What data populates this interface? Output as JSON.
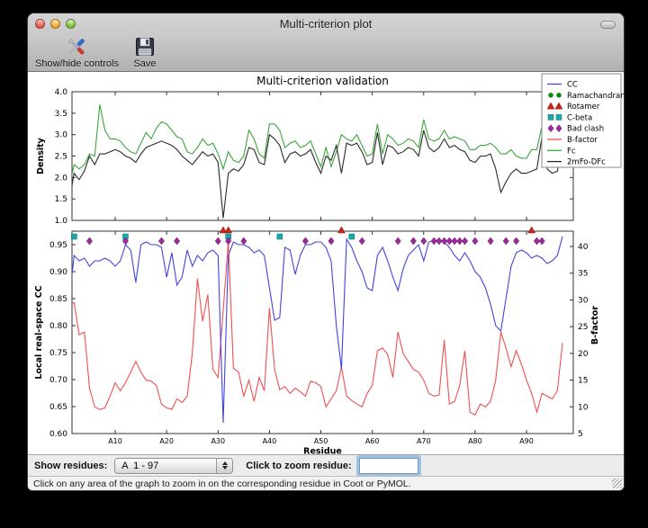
{
  "window": {
    "title": "Multi-criterion plot"
  },
  "toolbar": {
    "show_hide_label": "Show/hide controls",
    "save_label": "Save"
  },
  "controls": {
    "show_residues_label": "Show residues:",
    "residue_range_value": "A  1 - 97",
    "zoom_residue_label": "Click to zoom residue:",
    "zoom_input_value": ""
  },
  "statusbar": {
    "message": "Click on any area of the graph to zoom in on the corresponding residue in Coot or PyMOL."
  },
  "chart_data": [
    {
      "type": "line",
      "title": "Multi-criterion validation",
      "ylabel": "Density",
      "ylim": [
        1.0,
        4.0
      ],
      "yticks": [
        1.0,
        1.5,
        2.0,
        2.5,
        3.0,
        3.5,
        4.0
      ],
      "ytick_labels": [
        "1.0",
        "1.5",
        "2.0",
        "2.5",
        "3.0",
        "3.5",
        "4.0"
      ],
      "x": "residues 1-97",
      "series": [
        {
          "name": "Fc",
          "color": "#3aa63a",
          "values": [
            1.75,
            2.3,
            2.2,
            2.3,
            2.55,
            2.5,
            3.7,
            3.1,
            2.9,
            2.9,
            2.85,
            2.7,
            2.6,
            2.55,
            2.8,
            3.05,
            2.9,
            3.15,
            3.3,
            3.25,
            3.1,
            2.95,
            2.9,
            2.6,
            2.55,
            2.7,
            2.9,
            2.75,
            2.8,
            2.55,
            2.2,
            2.6,
            2.4,
            2.35,
            2.5,
            3.1,
            2.9,
            2.55,
            2.45,
            3.25,
            3.25,
            3.1,
            2.7,
            2.8,
            2.85,
            2.7,
            2.75,
            2.85,
            2.55,
            2.25,
            2.7,
            2.25,
            2.6,
            3.0,
            2.9,
            2.85,
            3.0,
            2.75,
            2.5,
            2.55,
            3.25,
            2.55,
            3.0,
            2.9,
            2.75,
            2.8,
            2.9,
            2.85,
            2.7,
            3.35,
            2.9,
            2.85,
            2.9,
            3.1,
            2.9,
            2.95,
            2.9,
            2.85,
            2.65,
            2.65,
            2.75,
            2.75,
            2.8,
            2.7,
            2.55,
            2.55,
            2.65,
            2.5,
            2.45,
            2.45,
            2.65,
            2.65,
            3.2,
            2.5,
            2.45,
            2.45,
            3.5
          ]
        },
        {
          "name": "2mFo-DFc",
          "color": "#2a2a2a",
          "values": [
            1.4,
            2.1,
            1.95,
            2.15,
            2.5,
            2.3,
            2.55,
            2.55,
            2.6,
            2.65,
            2.6,
            2.5,
            2.45,
            2.35,
            2.55,
            2.7,
            2.75,
            2.8,
            2.85,
            2.8,
            2.75,
            2.65,
            2.5,
            2.4,
            2.3,
            2.45,
            2.6,
            2.5,
            2.55,
            2.35,
            1.05,
            2.1,
            2.2,
            2.15,
            2.3,
            2.7,
            2.65,
            2.35,
            2.3,
            3.0,
            2.9,
            2.75,
            2.35,
            2.55,
            2.6,
            2.5,
            2.55,
            2.65,
            2.35,
            2.1,
            2.5,
            2.4,
            2.75,
            2.1,
            2.8,
            2.75,
            2.8,
            2.6,
            2.3,
            2.35,
            3.05,
            2.3,
            2.75,
            2.7,
            2.55,
            2.6,
            2.7,
            2.65,
            2.5,
            3.1,
            2.7,
            2.6,
            2.7,
            2.9,
            2.7,
            2.75,
            2.65,
            2.6,
            2.4,
            2.35,
            2.5,
            2.5,
            2.55,
            2.2,
            1.65,
            1.9,
            2.1,
            2.2,
            2.1,
            2.1,
            2.15,
            2.2,
            2.95,
            2.2,
            2.1,
            2.15,
            2.95
          ]
        }
      ]
    },
    {
      "type": "line+scatter",
      "xlabel": "Residue",
      "xticks": [
        10,
        20,
        30,
        40,
        50,
        60,
        70,
        80,
        90
      ],
      "xtick_labels": [
        "A10",
        "A20",
        "A30",
        "A40",
        "A50",
        "A60",
        "A70",
        "A80",
        "A90"
      ],
      "left": {
        "label": "Local real-space CC",
        "lim": [
          0.6,
          0.975
        ],
        "ticks": [
          0.6,
          0.65,
          0.7,
          0.75,
          0.8,
          0.85,
          0.9,
          0.95
        ],
        "tick_labels": [
          "0.60",
          "0.65",
          "0.70",
          "0.75",
          "0.80",
          "0.85",
          "0.90",
          "0.95"
        ]
      },
      "right": {
        "label": "B-factor",
        "lim": [
          5,
          42.9
        ],
        "ticks": [
          5,
          10,
          15,
          20,
          25,
          30,
          35,
          40
        ],
        "tick_labels": [
          "5",
          "10",
          "15",
          "20",
          "25",
          "30",
          "35",
          "40"
        ]
      },
      "series": [
        {
          "name": "CC",
          "axis": "left",
          "color": "#4343dd",
          "values": [
            0.84,
            0.93,
            0.92,
            0.925,
            0.91,
            0.92,
            0.92,
            0.925,
            0.92,
            0.91,
            0.92,
            0.95,
            0.94,
            0.88,
            0.95,
            0.955,
            0.95,
            0.95,
            0.945,
            0.89,
            0.935,
            0.875,
            0.89,
            0.94,
            0.91,
            0.93,
            0.92,
            0.935,
            0.94,
            0.93,
            0.62,
            0.93,
            0.955,
            0.95,
            0.95,
            0.945,
            0.935,
            0.94,
            0.93,
            0.87,
            0.81,
            0.815,
            0.945,
            0.94,
            0.895,
            0.93,
            0.95,
            0.95,
            0.955,
            0.955,
            0.945,
            0.92,
            0.8,
            0.72,
            0.96,
            0.945,
            0.92,
            0.9,
            0.87,
            0.865,
            0.93,
            0.945,
            0.92,
            0.89,
            0.865,
            0.905,
            0.93,
            0.94,
            0.95,
            0.92,
            0.955,
            0.958,
            0.958,
            0.955,
            0.945,
            0.93,
            0.92,
            0.935,
            0.92,
            0.9,
            0.89,
            0.87,
            0.84,
            0.8,
            0.79,
            0.85,
            0.91,
            0.935,
            0.94,
            0.935,
            0.925,
            0.93,
            0.925,
            0.915,
            0.92,
            0.93,
            0.965
          ]
        },
        {
          "name": "B-factor",
          "axis": "right",
          "color": "#f05050",
          "values": [
            29,
            29.5,
            23.5,
            24,
            13.5,
            10,
            9.5,
            9.8,
            12,
            14.5,
            13,
            14.5,
            16.5,
            18.5,
            16.5,
            15,
            14.8,
            14,
            10.5,
            9.8,
            9.5,
            11.5,
            10.8,
            12,
            20,
            34,
            26,
            31,
            17,
            15.5,
            28,
            41,
            17.2,
            16.5,
            12,
            15,
            11,
            15.5,
            13,
            28.5,
            17,
            13.2,
            13.8,
            12.5,
            13.5,
            12.8,
            12,
            14.8,
            14.5,
            13.8,
            10,
            11.5,
            13,
            17.5,
            12,
            11.2,
            10.5,
            10,
            12.5,
            14,
            20.5,
            21,
            19.8,
            15.5,
            24,
            20,
            18.5,
            17,
            16.5,
            15,
            12.5,
            12,
            12.2,
            22.5,
            10.5,
            11,
            14,
            20.5,
            9,
            8.5,
            10.5,
            10,
            11,
            15,
            24,
            21,
            17.5,
            20.5,
            18,
            15,
            12.5,
            9,
            12.5,
            12,
            11.5,
            13,
            22
          ]
        }
      ],
      "outlier_markers": [
        {
          "name": "Ramachandran",
          "shape": "circle",
          "color": "#128812",
          "residues": []
        },
        {
          "name": "Rotamer",
          "shape": "triangle",
          "color": "#cc2414",
          "residues": [
            31,
            32,
            54,
            91
          ]
        },
        {
          "name": "C-beta",
          "shape": "square",
          "color": "#1aa8a8",
          "residues": [
            2,
            12,
            32,
            42,
            56
          ]
        },
        {
          "name": "Bad clash",
          "shape": "diamond",
          "color": "#9c2a9c",
          "residues": [
            5,
            12,
            19,
            22,
            30,
            32,
            35,
            47,
            52,
            58,
            65,
            68,
            70,
            72,
            73,
            74,
            75,
            76,
            77,
            78,
            80,
            83,
            86,
            88,
            92,
            93
          ]
        }
      ],
      "legend": {
        "position": "upper right",
        "entries": [
          {
            "label": "CC",
            "shape": "line",
            "color": "#4343dd"
          },
          {
            "label": "Ramachandran",
            "shape": "circle",
            "color": "#128812"
          },
          {
            "label": "Rotamer",
            "shape": "triangle",
            "color": "#cc2414"
          },
          {
            "label": "C-beta",
            "shape": "square",
            "color": "#1aa8a8"
          },
          {
            "label": "Bad clash",
            "shape": "diamond",
            "color": "#9c2a9c"
          },
          {
            "label": "B-factor",
            "shape": "line",
            "color": "#f05050"
          },
          {
            "label": "Fc",
            "shape": "line",
            "color": "#3aa63a"
          },
          {
            "label": "2mFo-DFc",
            "shape": "line",
            "color": "#2a2a2a"
          }
        ]
      }
    }
  ]
}
